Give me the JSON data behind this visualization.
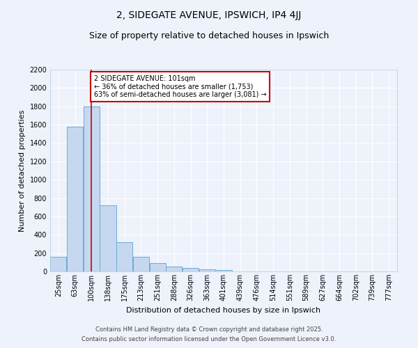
{
  "title": "2, SIDEGATE AVENUE, IPSWICH, IP4 4JJ",
  "subtitle": "Size of property relative to detached houses in Ipswich",
  "xlabel": "Distribution of detached houses by size in Ipswich",
  "ylabel": "Number of detached properties",
  "bin_labels": [
    "25sqm",
    "63sqm",
    "100sqm",
    "138sqm",
    "175sqm",
    "213sqm",
    "251sqm",
    "288sqm",
    "326sqm",
    "363sqm",
    "401sqm",
    "439sqm",
    "476sqm",
    "514sqm",
    "551sqm",
    "589sqm",
    "627sqm",
    "664sqm",
    "702sqm",
    "739sqm",
    "777sqm"
  ],
  "bar_values": [
    160,
    1580,
    1800,
    720,
    320,
    160,
    90,
    55,
    35,
    20,
    15,
    0,
    0,
    0,
    0,
    0,
    0,
    0,
    0,
    0,
    0
  ],
  "bar_color": "#c5d8f0",
  "bar_edge_color": "#6aaad4",
  "vline_x_index": 2,
  "vline_color": "#cc0000",
  "annotation_line1": "2 SIDEGATE AVENUE: 101sqm",
  "annotation_line2": "← 36% of detached houses are smaller (1,753)",
  "annotation_line3": "63% of semi-detached houses are larger (3,081) →",
  "annotation_box_edgecolor": "#cc0000",
  "annotation_box_facecolor": "#ffffff",
  "ylim": [
    0,
    2200
  ],
  "yticks": [
    0,
    200,
    400,
    600,
    800,
    1000,
    1200,
    1400,
    1600,
    1800,
    2000,
    2200
  ],
  "background_color": "#eef2fb",
  "grid_color": "#ffffff",
  "footer_line1": "Contains HM Land Registry data © Crown copyright and database right 2025.",
  "footer_line2": "Contains public sector information licensed under the Open Government Licence v3.0.",
  "title_fontsize": 10,
  "subtitle_fontsize": 9,
  "axis_label_fontsize": 8,
  "tick_fontsize": 7,
  "footer_fontsize": 6
}
